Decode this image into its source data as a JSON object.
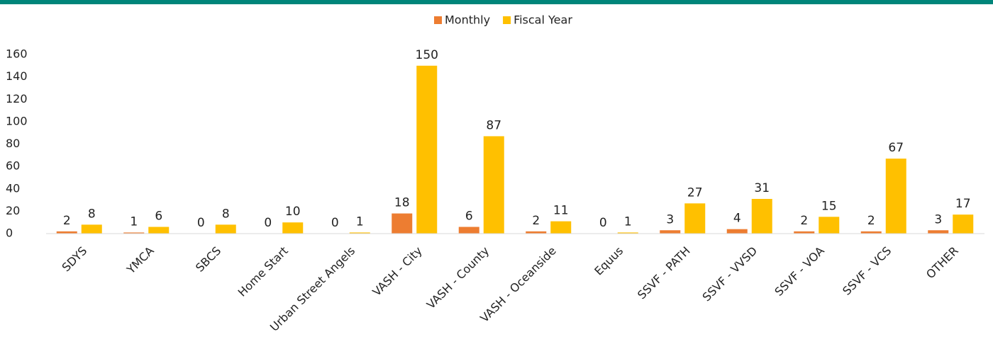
{
  "chart_data": {
    "type": "bar",
    "categories": [
      "SDYS",
      "YMCA",
      "SBCS",
      "Home Start",
      "Urban Street Angels",
      "VASH - City",
      "VASH - County",
      "VASH - Oceanside",
      "Equus",
      "SSVF - PATH",
      "SSVF - VVSD",
      "SSVF - VOA",
      "SSVF - VCS",
      "OTHER"
    ],
    "series": [
      {
        "name": "Monthly",
        "color": "#ed7d31",
        "values": [
          2,
          1,
          0,
          0,
          0,
          18,
          6,
          2,
          0,
          3,
          4,
          2,
          2,
          3
        ]
      },
      {
        "name": "Fiscal Year",
        "color": "#ffc000",
        "values": [
          8,
          6,
          8,
          10,
          1,
          150,
          87,
          11,
          1,
          27,
          31,
          15,
          67,
          17
        ]
      }
    ],
    "ylim": [
      0,
      160
    ],
    "yticks": [
      0,
      20,
      40,
      60,
      80,
      100,
      120,
      140,
      160
    ],
    "grid": false,
    "legend": "top"
  }
}
